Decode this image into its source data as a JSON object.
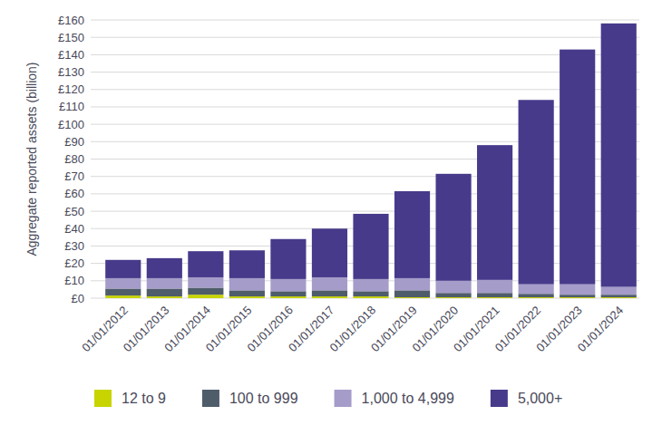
{
  "chart_data": {
    "type": "bar",
    "stacked": true,
    "grid": true,
    "legend": "bottom",
    "y_label": "Aggregate reported assets (billion)",
    "categories": [
      "01/01/2012",
      "01/01/2013",
      "01/01/2014",
      "01/01/2015",
      "01/01/2016",
      "01/01/2017",
      "01/01/2018",
      "01/01/2019",
      "01/01/2020",
      "01/01/2021",
      "01/01/2022",
      "01/01/2023",
      "01/01/2024"
    ],
    "series": [
      {
        "name": "12 to 9",
        "color": "#c8d400",
        "values": [
          1.5,
          1,
          2,
          1,
          1,
          1,
          1,
          0.5,
          0.5,
          0.5,
          0.5,
          0.5,
          0.5
        ]
      },
      {
        "name": "100 to 999",
        "color": "#4f5d6b",
        "values": [
          4,
          4.5,
          4,
          3.5,
          3,
          3.5,
          3,
          4,
          2.5,
          2.5,
          2,
          1.5,
          1.5
        ]
      },
      {
        "name": "1,000 to 4,999",
        "color": "#a59cc9",
        "values": [
          6,
          6,
          6,
          7,
          7,
          7.5,
          7,
          7,
          7,
          7.5,
          5.5,
          6,
          4.5
        ]
      },
      {
        "name": "5,000+",
        "color": "#473a8b",
        "values": [
          10.5,
          11.5,
          15,
          16,
          23,
          28,
          37.5,
          50,
          61.5,
          77.5,
          106,
          135,
          151.5
        ]
      }
    ],
    "ylim": [
      0,
      160
    ],
    "yticks": [
      {
        "value": 0,
        "label": "£0"
      },
      {
        "value": 10,
        "label": "£10"
      },
      {
        "value": 20,
        "label": "£20"
      },
      {
        "value": 30,
        "label": "£30"
      },
      {
        "value": 40,
        "label": "£40"
      },
      {
        "value": 50,
        "label": "£50"
      },
      {
        "value": 60,
        "label": "£60"
      },
      {
        "value": 70,
        "label": "£70"
      },
      {
        "value": 80,
        "label": "£80"
      },
      {
        "value": 90,
        "label": "£90"
      },
      {
        "value": 100,
        "label": "£100"
      },
      {
        "value": 110,
        "label": "£110"
      },
      {
        "value": 120,
        "label": "£120"
      },
      {
        "value": 130,
        "label": "£130"
      },
      {
        "value": 140,
        "label": "£140"
      },
      {
        "value": 150,
        "label": "£150"
      },
      {
        "value": 160,
        "label": "£160"
      }
    ]
  }
}
